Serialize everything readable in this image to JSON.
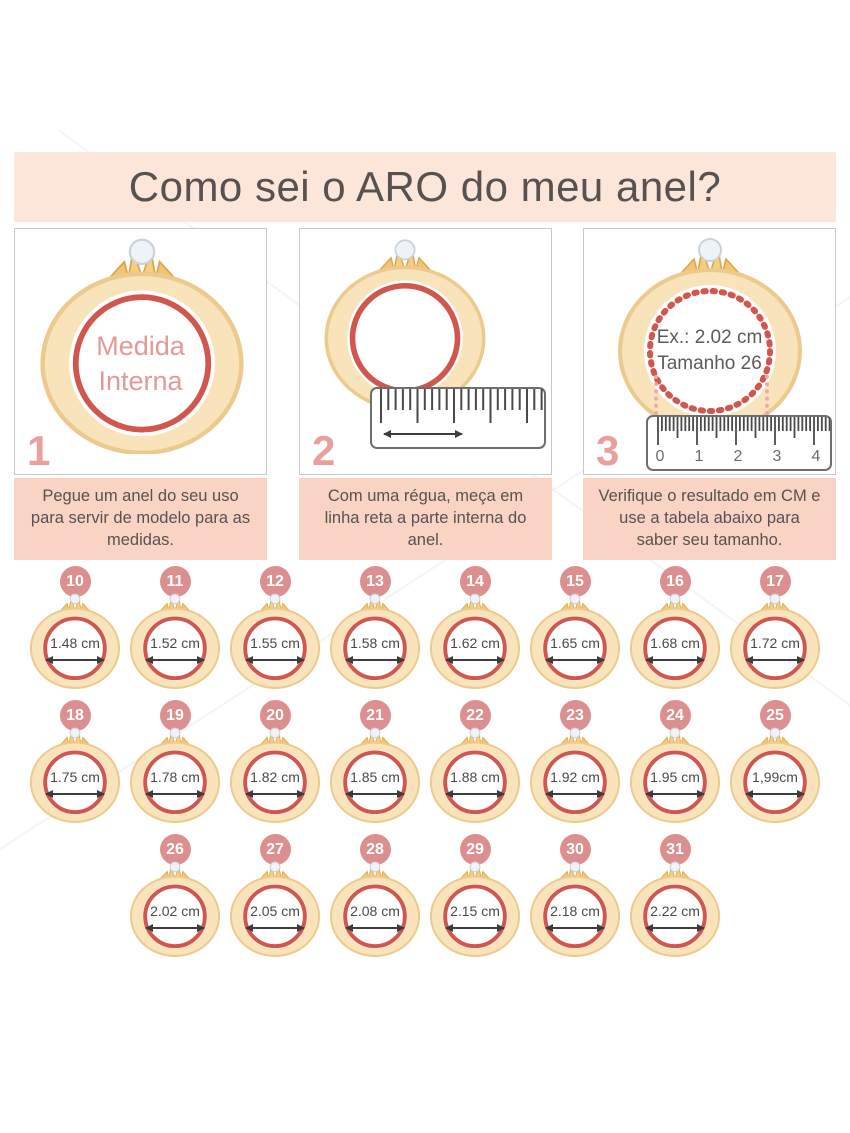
{
  "title": "Como sei o ARO do meu anel?",
  "steps": [
    {
      "number": "1",
      "ring_text_line1": "Medida",
      "ring_text_line2": "Interna",
      "caption": "Pegue um anel do seu uso para servir de modelo para as medidas."
    },
    {
      "number": "2",
      "caption": "Com uma régua, meça em linha reta a parte interna do anel."
    },
    {
      "number": "3",
      "example_line1": "Ex.: 2.02 cm",
      "example_line2": "Tamanho 26",
      "ruler_numbers": [
        "0",
        "1",
        "2",
        "3",
        "4"
      ],
      "caption": "Verifique o resultado em CM e use a tabela abaixo para saber seu tamanho."
    }
  ],
  "size_chart": {
    "rows": [
      [
        {
          "size": "10",
          "measure": "1.48 cm"
        },
        {
          "size": "11",
          "measure": "1.52 cm"
        },
        {
          "size": "12",
          "measure": "1.55 cm"
        },
        {
          "size": "13",
          "measure": "1.58 cm"
        },
        {
          "size": "14",
          "measure": "1.62 cm"
        },
        {
          "size": "15",
          "measure": "1.65 cm"
        },
        {
          "size": "16",
          "measure": "1.68 cm"
        },
        {
          "size": "17",
          "measure": "1.72 cm"
        }
      ],
      [
        {
          "size": "18",
          "measure": "1.75 cm"
        },
        {
          "size": "19",
          "measure": "1.78 cm"
        },
        {
          "size": "20",
          "measure": "1.82 cm"
        },
        {
          "size": "21",
          "measure": "1.85 cm"
        },
        {
          "size": "22",
          "measure": "1.88 cm"
        },
        {
          "size": "23",
          "measure": "1.92 cm"
        },
        {
          "size": "24",
          "measure": "1.95 cm"
        },
        {
          "size": "25",
          "measure": "1,99cm"
        }
      ],
      [
        {
          "size": "26",
          "measure": "2.02 cm"
        },
        {
          "size": "27",
          "measure": "2.05 cm"
        },
        {
          "size": "28",
          "measure": "2.08 cm"
        },
        {
          "size": "29",
          "measure": "2.15 cm"
        },
        {
          "size": "30",
          "measure": "2.18 cm"
        },
        {
          "size": "31",
          "measure": "2.22 cm"
        }
      ]
    ]
  },
  "colors": {
    "banner_bg": "#fce5d9",
    "caption_bg": "#f9d3c4",
    "title_text": "#575150",
    "body_text": "#585250",
    "badge_bg": "#db8f8e",
    "badge_text": "#ffffff",
    "step_number": "#e9a09d",
    "ring_band": "#f8e3ba",
    "ring_band_edge": "#ecc98c",
    "ring_inner_stroke": "#d0564e",
    "ring_label_pink": "#e39a96",
    "measure_text": "#4c4846",
    "ruler_line": "#4a4a4a",
    "box_border": "#c9c9c9",
    "dotted_line": "#efa9a5"
  }
}
